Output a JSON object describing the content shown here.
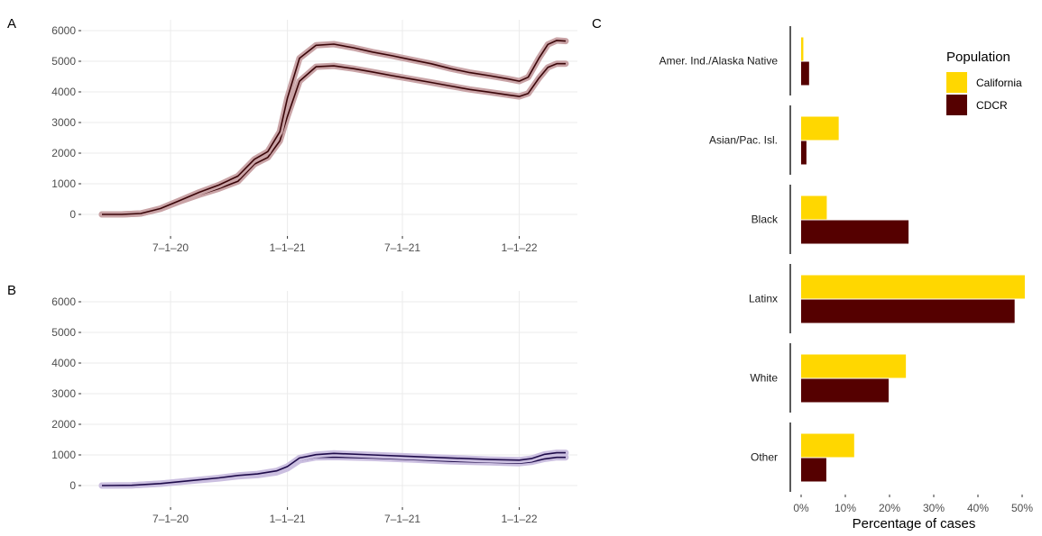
{
  "panels": {
    "a_tag": "A",
    "b_tag": "B",
    "c_tag": "C"
  },
  "colors": {
    "panel_a_line": "#3a0508",
    "panel_a_ribbon": "#c9a3a6",
    "panel_b_line": "#1e0b4a",
    "panel_b_ribbon": "#cbbfe0",
    "california": "#FFD700",
    "cdcr": "#550000",
    "grid": "#ebebeb"
  },
  "chart_data": [
    {
      "type": "line",
      "panel": "A",
      "x_ticks": [
        "7–1–20",
        "1–1–21",
        "7–1–21",
        "1–1–22"
      ],
      "y_ticks": [
        "0",
        "1000",
        "2000",
        "3000",
        "4000",
        "5000",
        "6000"
      ],
      "ylim": [
        0,
        6000
      ],
      "series": [
        {
          "x": [
            "2020-03-15",
            "2020-04-15",
            "2020-05-15",
            "2020-06-15",
            "2020-07-15",
            "2020-08-15",
            "2020-09-15",
            "2020-10-15",
            "2020-11-10",
            "2020-12-01",
            "2020-12-20",
            "2021-01-01",
            "2021-01-20",
            "2021-02-15",
            "2021-03-15",
            "2021-04-15",
            "2021-05-15",
            "2021-06-15",
            "2021-07-15",
            "2021-08-15",
            "2021-09-15",
            "2021-10-15",
            "2021-11-15",
            "2021-12-15",
            "2022-01-01",
            "2022-01-15",
            "2022-02-01",
            "2022-02-15",
            "2022-03-01",
            "2022-03-15"
          ],
          "values": [
            0,
            0,
            30,
            180,
            420,
            640,
            840,
            1080,
            1640,
            1860,
            2400,
            3200,
            4350,
            4820,
            4850,
            4760,
            4650,
            4530,
            4420,
            4310,
            4190,
            4080,
            3990,
            3900,
            3850,
            3950,
            4450,
            4800,
            4920,
            4920
          ]
        },
        {
          "x": [
            "2020-03-15",
            "2020-04-15",
            "2020-05-15",
            "2020-06-15",
            "2020-07-15",
            "2020-08-15",
            "2020-09-15",
            "2020-10-15",
            "2020-11-10",
            "2020-12-01",
            "2020-12-20",
            "2021-01-01",
            "2021-01-20",
            "2021-02-15",
            "2021-03-15",
            "2021-04-15",
            "2021-05-15",
            "2021-06-15",
            "2021-07-15",
            "2021-08-15",
            "2021-09-15",
            "2021-10-15",
            "2021-11-15",
            "2021-12-15",
            "2022-01-01",
            "2022-01-15",
            "2022-02-01",
            "2022-02-15",
            "2022-03-01",
            "2022-03-15"
          ],
          "values": [
            0,
            0,
            30,
            190,
            450,
            720,
            960,
            1250,
            1800,
            2050,
            2700,
            3800,
            5100,
            5520,
            5560,
            5440,
            5300,
            5180,
            5050,
            4920,
            4760,
            4630,
            4530,
            4420,
            4350,
            4480,
            5100,
            5550,
            5680,
            5660
          ]
        }
      ]
    },
    {
      "type": "line",
      "panel": "B",
      "x_ticks": [
        "7–1–20",
        "1–1–21",
        "7–1–21",
        "1–1–22"
      ],
      "y_ticks": [
        "0",
        "1000",
        "2000",
        "3000",
        "4000",
        "5000",
        "6000"
      ],
      "ylim": [
        0,
        6000
      ],
      "series": [
        {
          "x": [
            "2020-03-15",
            "2020-05-01",
            "2020-06-15",
            "2020-08-01",
            "2020-09-15",
            "2020-10-15",
            "2020-11-15",
            "2020-12-15",
            "2021-01-01",
            "2021-01-20",
            "2021-02-15",
            "2021-03-15",
            "2021-05-15",
            "2021-07-15",
            "2021-09-15",
            "2021-11-15",
            "2022-01-01",
            "2022-01-20",
            "2022-02-10",
            "2022-03-01",
            "2022-03-15"
          ],
          "values": [
            0,
            10,
            60,
            150,
            230,
            300,
            340,
            430,
            560,
            820,
            920,
            930,
            900,
            850,
            790,
            760,
            730,
            770,
            870,
            920,
            920
          ]
        },
        {
          "x": [
            "2020-03-15",
            "2020-05-01",
            "2020-06-15",
            "2020-08-01",
            "2020-09-15",
            "2020-10-15",
            "2020-11-15",
            "2020-12-15",
            "2021-01-01",
            "2021-01-20",
            "2021-02-15",
            "2021-03-15",
            "2021-05-15",
            "2021-07-15",
            "2021-09-15",
            "2021-11-15",
            "2022-01-01",
            "2022-01-20",
            "2022-02-10",
            "2022-03-01",
            "2022-03-15"
          ],
          "values": [
            0,
            10,
            65,
            160,
            250,
            330,
            380,
            480,
            620,
            900,
            1010,
            1050,
            1000,
            950,
            900,
            850,
            830,
            880,
            1020,
            1070,
            1070
          ]
        }
      ]
    },
    {
      "type": "bar",
      "panel": "C",
      "orientation": "horizontal",
      "categories": [
        "Amer. Ind./Alaska Native",
        "Asian/Pac. Isl.",
        "Black",
        "Latinx",
        "White",
        "Other"
      ],
      "x_ticks": [
        "0%",
        "10%",
        "20%",
        "30%",
        "40%",
        "50%"
      ],
      "xlim": [
        0,
        50
      ],
      "xlabel": "Percentage of cases",
      "legend_title": "Population",
      "series": [
        {
          "name": "California",
          "values": [
            0.5,
            8.5,
            5.8,
            50.6,
            23.7,
            12.0
          ]
        },
        {
          "name": "CDCR",
          "values": [
            1.8,
            1.2,
            24.3,
            48.3,
            19.8,
            5.7
          ]
        }
      ]
    }
  ]
}
